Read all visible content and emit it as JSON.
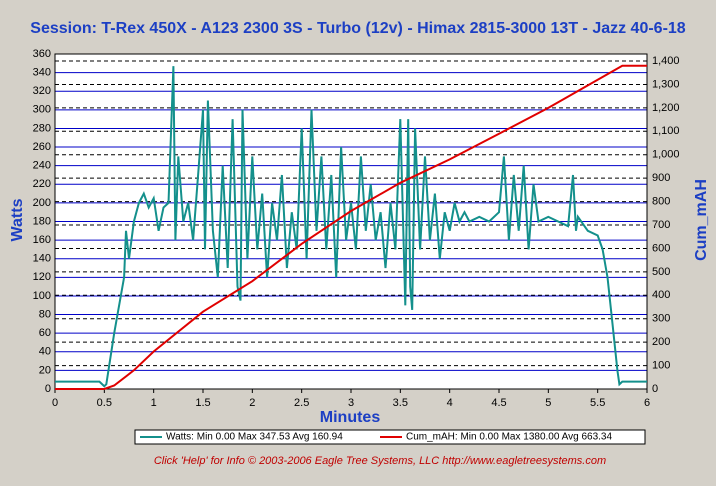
{
  "chart_data": {
    "type": "line",
    "title": "Session: T-Rex 450X - A123 2300 3S - Turbo (12v) - Himax 2815-3000 13T - Jazz 40-6-18",
    "xlabel": "Minutes",
    "ylabel": "Watts",
    "y2label": "Cum_mAH",
    "footer": "Click 'Help' for Info   © 2003-2006 Eagle Tree Systems, LLC      http://www.eagletreesystems.com",
    "xlim": [
      0,
      6
    ],
    "xticks": [
      0,
      0.5,
      1,
      1.5,
      2,
      2.5,
      3,
      3.5,
      4,
      4.5,
      5,
      5.5,
      6
    ],
    "ylim": [
      0,
      360
    ],
    "yticks": [
      0,
      20,
      40,
      60,
      80,
      100,
      120,
      140,
      160,
      180,
      200,
      220,
      240,
      260,
      280,
      300,
      320,
      340,
      360
    ],
    "y2lim": [
      0,
      1430
    ],
    "y2ticks": [
      0,
      100,
      200,
      300,
      400,
      500,
      600,
      700,
      800,
      900,
      {
        "value": 1000,
        "label": "1,000"
      },
      {
        "value": 1100,
        "label": "1,100"
      },
      {
        "value": 1200,
        "label": "1,200"
      },
      {
        "value": 1300,
        "label": "1,300"
      },
      {
        "value": 1400,
        "label": "1,400"
      }
    ],
    "grid": true,
    "series": [
      {
        "name": "Watts:  Min 0.00 Max 347.53 Avg 160.94",
        "color": "#14908c",
        "x": [
          0,
          0.45,
          0.5,
          0.52,
          0.6,
          0.7,
          0.72,
          0.75,
          0.8,
          0.85,
          0.9,
          0.95,
          1.0,
          1.05,
          1.1,
          1.15,
          1.2,
          1.22,
          1.25,
          1.3,
          1.35,
          1.4,
          1.45,
          1.5,
          1.52,
          1.55,
          1.6,
          1.65,
          1.7,
          1.75,
          1.8,
          1.85,
          1.88,
          1.9,
          1.95,
          2.0,
          2.05,
          2.1,
          2.15,
          2.2,
          2.25,
          2.3,
          2.35,
          2.4,
          2.45,
          2.5,
          2.55,
          2.6,
          2.65,
          2.7,
          2.75,
          2.8,
          2.85,
          2.9,
          2.95,
          3.0,
          3.05,
          3.1,
          3.15,
          3.2,
          3.25,
          3.3,
          3.35,
          3.4,
          3.45,
          3.5,
          3.55,
          3.58,
          3.6,
          3.62,
          3.65,
          3.7,
          3.75,
          3.8,
          3.85,
          3.9,
          3.95,
          4.0,
          4.05,
          4.1,
          4.15,
          4.2,
          4.3,
          4.4,
          4.5,
          4.55,
          4.6,
          4.65,
          4.7,
          4.75,
          4.8,
          4.85,
          4.9,
          5.0,
          5.1,
          5.2,
          5.25,
          5.28,
          5.3,
          5.4,
          5.5,
          5.55,
          5.6,
          5.65,
          5.7,
          5.72,
          5.75,
          6.0
        ],
        "values": [
          8,
          8,
          3,
          5,
          60,
          120,
          170,
          140,
          180,
          200,
          210,
          195,
          205,
          170,
          195,
          200,
          347,
          160,
          250,
          180,
          200,
          160,
          230,
          300,
          150,
          310,
          170,
          120,
          240,
          130,
          290,
          110,
          95,
          300,
          140,
          250,
          150,
          210,
          120,
          200,
          160,
          230,
          130,
          190,
          150,
          280,
          140,
          300,
          170,
          250,
          150,
          230,
          120,
          260,
          160,
          200,
          150,
          250,
          170,
          220,
          160,
          190,
          130,
          200,
          150,
          290,
          90,
          290,
          110,
          85,
          280,
          150,
          250,
          160,
          210,
          140,
          190,
          170,
          200,
          180,
          190,
          180,
          185,
          180,
          190,
          250,
          160,
          230,
          170,
          240,
          150,
          220,
          180,
          185,
          180,
          175,
          230,
          170,
          185,
          170,
          165,
          150,
          120,
          70,
          20,
          5,
          8,
          8
        ]
      },
      {
        "name": "Cum_mAH:  Min 0.00 Max 1380.00 Avg 663.34",
        "color": "#e00000",
        "axis": "y2",
        "x": [
          0,
          0.5,
          0.6,
          0.8,
          1.0,
          1.5,
          2.0,
          2.5,
          3.0,
          3.5,
          4.0,
          4.5,
          5.0,
          5.5,
          5.75,
          6.0
        ],
        "values": [
          0,
          0,
          15,
          80,
          160,
          330,
          460,
          620,
          760,
          880,
          980,
          1090,
          1200,
          1320,
          1380,
          1380
        ]
      }
    ]
  }
}
